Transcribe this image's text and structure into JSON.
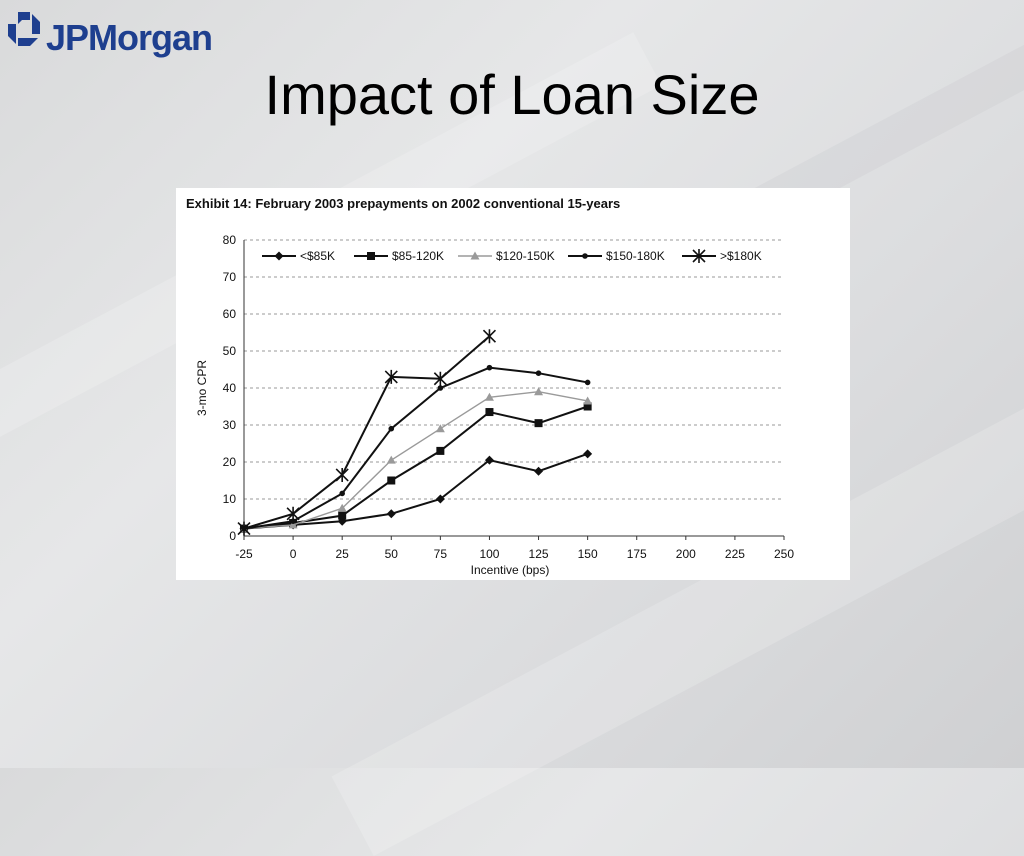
{
  "logo": {
    "name": "JPMorgan",
    "icon": "jpmorgan-octagon-icon"
  },
  "slide": {
    "title": "Impact of Loan Size"
  },
  "colors": {
    "brand": "#1e3f8f",
    "background": "#dcdddf"
  },
  "chart_data": {
    "type": "line",
    "title": "Exhibit 14:  February 2003 prepayments on 2002 conventional 15-years",
    "xlabel": "Incentive (bps)",
    "ylabel": "3-mo CPR",
    "xlim": [
      -25,
      250
    ],
    "ylim": [
      0,
      80
    ],
    "x_ticks": [
      -25,
      0,
      25,
      50,
      75,
      100,
      125,
      150,
      175,
      200,
      225,
      250
    ],
    "y_ticks": [
      0,
      10,
      20,
      30,
      40,
      50,
      60,
      70,
      80
    ],
    "grid": "horizontal-dashed",
    "legend_position": "top",
    "series": [
      {
        "name": "<$85K",
        "marker": "diamond",
        "color": "#111111",
        "x": [
          -25,
          0,
          25,
          50,
          75,
          100,
          125,
          150
        ],
        "values": [
          2,
          3,
          4,
          6,
          10,
          20.5,
          17.5,
          22.2
        ]
      },
      {
        "name": "$85-120K",
        "marker": "square",
        "color": "#111111",
        "x": [
          -25,
          0,
          25,
          50,
          75,
          100,
          125,
          150
        ],
        "values": [
          2,
          3.5,
          5.5,
          15,
          23,
          33.5,
          30.5,
          35
        ]
      },
      {
        "name": "$120-150K",
        "marker": "triangle",
        "color": "#9a9a9a",
        "x": [
          -25,
          0,
          25,
          50,
          75,
          100,
          125,
          150
        ],
        "values": [
          2,
          3,
          7.5,
          20.5,
          29,
          37.5,
          39,
          36.5
        ]
      },
      {
        "name": "$150-180K",
        "marker": "dot",
        "color": "#111111",
        "x": [
          -25,
          0,
          25,
          50,
          75,
          100,
          125,
          150
        ],
        "values": [
          2,
          4,
          11.5,
          29,
          40,
          45.5,
          44,
          41.5
        ]
      },
      {
        "name": ">$180K",
        "marker": "star",
        "color": "#111111",
        "x": [
          -25,
          0,
          25,
          50,
          75,
          100
        ],
        "values": [
          2,
          6,
          16.5,
          43,
          42.5,
          54
        ]
      }
    ]
  }
}
